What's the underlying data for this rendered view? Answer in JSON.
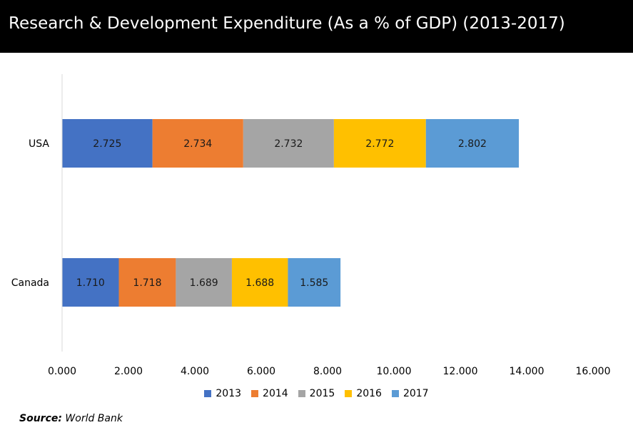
{
  "title": "Research & Development Expenditure (As a % of GDP) (2013-2017)",
  "source": {
    "label": "Source:",
    "text": " World Bank"
  },
  "colors": {
    "title_background": "#000000",
    "title_text": "#ffffff",
    "axis_line": "#d9d9d9"
  },
  "chart_data": {
    "type": "bar",
    "orientation": "horizontal",
    "stacked": true,
    "categories": [
      "USA",
      "Canada"
    ],
    "series": [
      {
        "name": "2013",
        "color": "#4472C4",
        "values": [
          2.725,
          1.71
        ],
        "labels": [
          "2.725",
          "1.710"
        ]
      },
      {
        "name": "2014",
        "color": "#ED7D31",
        "values": [
          2.734,
          1.718
        ],
        "labels": [
          "2.734",
          "1.718"
        ]
      },
      {
        "name": "2015",
        "color": "#A5A5A5",
        "values": [
          2.732,
          1.689
        ],
        "labels": [
          "2.732",
          "1.689"
        ]
      },
      {
        "name": "2016",
        "color": "#FFC000",
        "values": [
          2.772,
          1.688
        ],
        "labels": [
          "2.772",
          "1.688"
        ]
      },
      {
        "name": "2017",
        "color": "#5B9BD5",
        "values": [
          2.802,
          1.585
        ],
        "labels": [
          "2.802",
          "1.585"
        ]
      }
    ],
    "xlim": [
      0,
      16
    ],
    "xticks": [
      0,
      2,
      4,
      6,
      8,
      10,
      12,
      14,
      16
    ],
    "xtick_labels": [
      "0.000",
      "2.000",
      "4.000",
      "6.000",
      "8.000",
      "10.000",
      "12.000",
      "14.000",
      "16.000"
    ],
    "grid": false,
    "legend_position": "bottom"
  }
}
